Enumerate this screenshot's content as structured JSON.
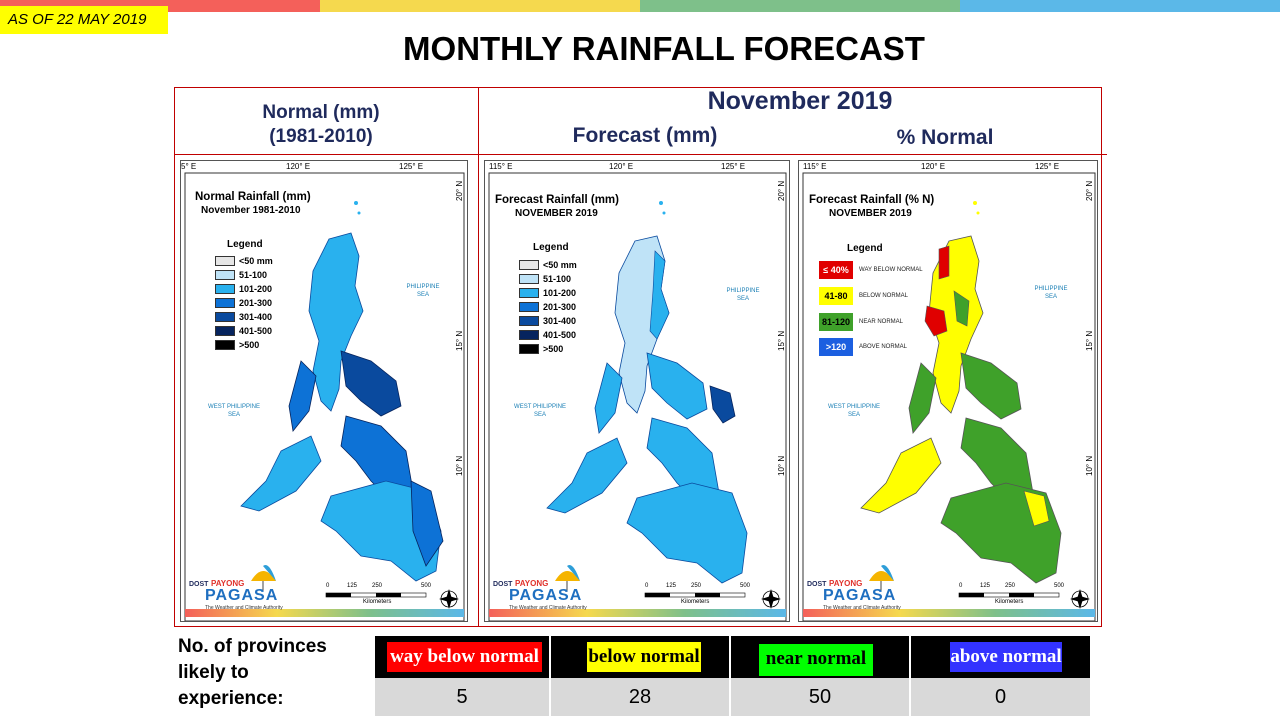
{
  "top_bar_colors": [
    "#f4605a",
    "#f5d94e",
    "#7ec08a",
    "#5bb8e8"
  ],
  "as_of": "AS OF 22 MAY 2019",
  "title": "MONTHLY RAINFALL FORECAST",
  "headers": {
    "normal_line1": "Normal (mm)",
    "normal_line2": "(1981-2010)",
    "month": "November 2019",
    "forecast": "Forecast (mm)",
    "percent": "% Normal"
  },
  "panels": [
    {
      "coord_top": [
        "5° E",
        "120° E",
        "125° E"
      ],
      "coord_side": [
        "20° N",
        "15° N",
        "10° N"
      ],
      "title": "Normal Rainfall (mm)",
      "subtitle": "November 1981-2010",
      "legend_title": "Legend",
      "legend": [
        "<50 mm",
        "51-100",
        "101-200",
        "201-300",
        "301-400",
        "401-500",
        ">500"
      ]
    },
    {
      "coord_top": [
        "115° E",
        "120° E",
        "125° E"
      ],
      "coord_side": [
        "20° N",
        "15° N",
        "10° N"
      ],
      "title": "Forecast Rainfall (mm)",
      "subtitle": "NOVEMBER 2019",
      "legend_title": "Legend",
      "legend": [
        "<50 mm",
        "51-100",
        "101-200",
        "201-300",
        "301-400",
        "401-500",
        ">500"
      ]
    },
    {
      "coord_top": [
        "115° E",
        "120° E",
        "125° E"
      ],
      "coord_side": [
        "20° N",
        "15° N",
        "10° N"
      ],
      "title": "Forecast Rainfall (% N)",
      "subtitle": "NOVEMBER 2019",
      "legend_title": "Legend",
      "legend_pct": [
        {
          "box": "≤ 40%",
          "label": "WAY BELOW NORMAL"
        },
        {
          "box": "41-80",
          "label": "BELOW NORMAL"
        },
        {
          "box": "81-120",
          "label": "NEAR NORMAL"
        },
        {
          "box": ">120",
          "label": "ABOVE NORMAL"
        }
      ]
    }
  ],
  "legend_colors": [
    "#e6e6e6",
    "#bfe3f7",
    "#29b1ee",
    "#0d72d6",
    "#0a4a9e",
    "#06245e",
    "#000000"
  ],
  "pct_colors": [
    "#e00000",
    "#ffff00",
    "#3fa12a",
    "#1c5fe0"
  ],
  "sea_labels": {
    "philippine_sea_1": "PHILIPPINE",
    "philippine_sea_2": "SEA",
    "west_sea_1": "WEST PHILIPPINE",
    "west_sea_2": "SEA"
  },
  "scale": {
    "ticks": [
      "0",
      "125",
      "250",
      "500"
    ],
    "unit": "Kilometers"
  },
  "logo": {
    "dost": "DOST",
    "payong": "PAYONG",
    "pagasa": "PAGASA",
    "tagline": "The Weather and Climate Authority"
  },
  "provinces": {
    "label_line1": "No. of provinces",
    "label_line2": "likely  to",
    "label_line3": "experience:",
    "categories": [
      "way below normal",
      "below normal",
      "near normal",
      "above normal"
    ],
    "category_colors": [
      "#ff0000",
      "#ffff00",
      "#00ff00",
      "#3333ff"
    ],
    "category_text_colors": [
      "#ffffff",
      "#000000",
      "#000000",
      "#ffffff"
    ],
    "counts": [
      "5",
      "28",
      "50",
      "0"
    ]
  }
}
